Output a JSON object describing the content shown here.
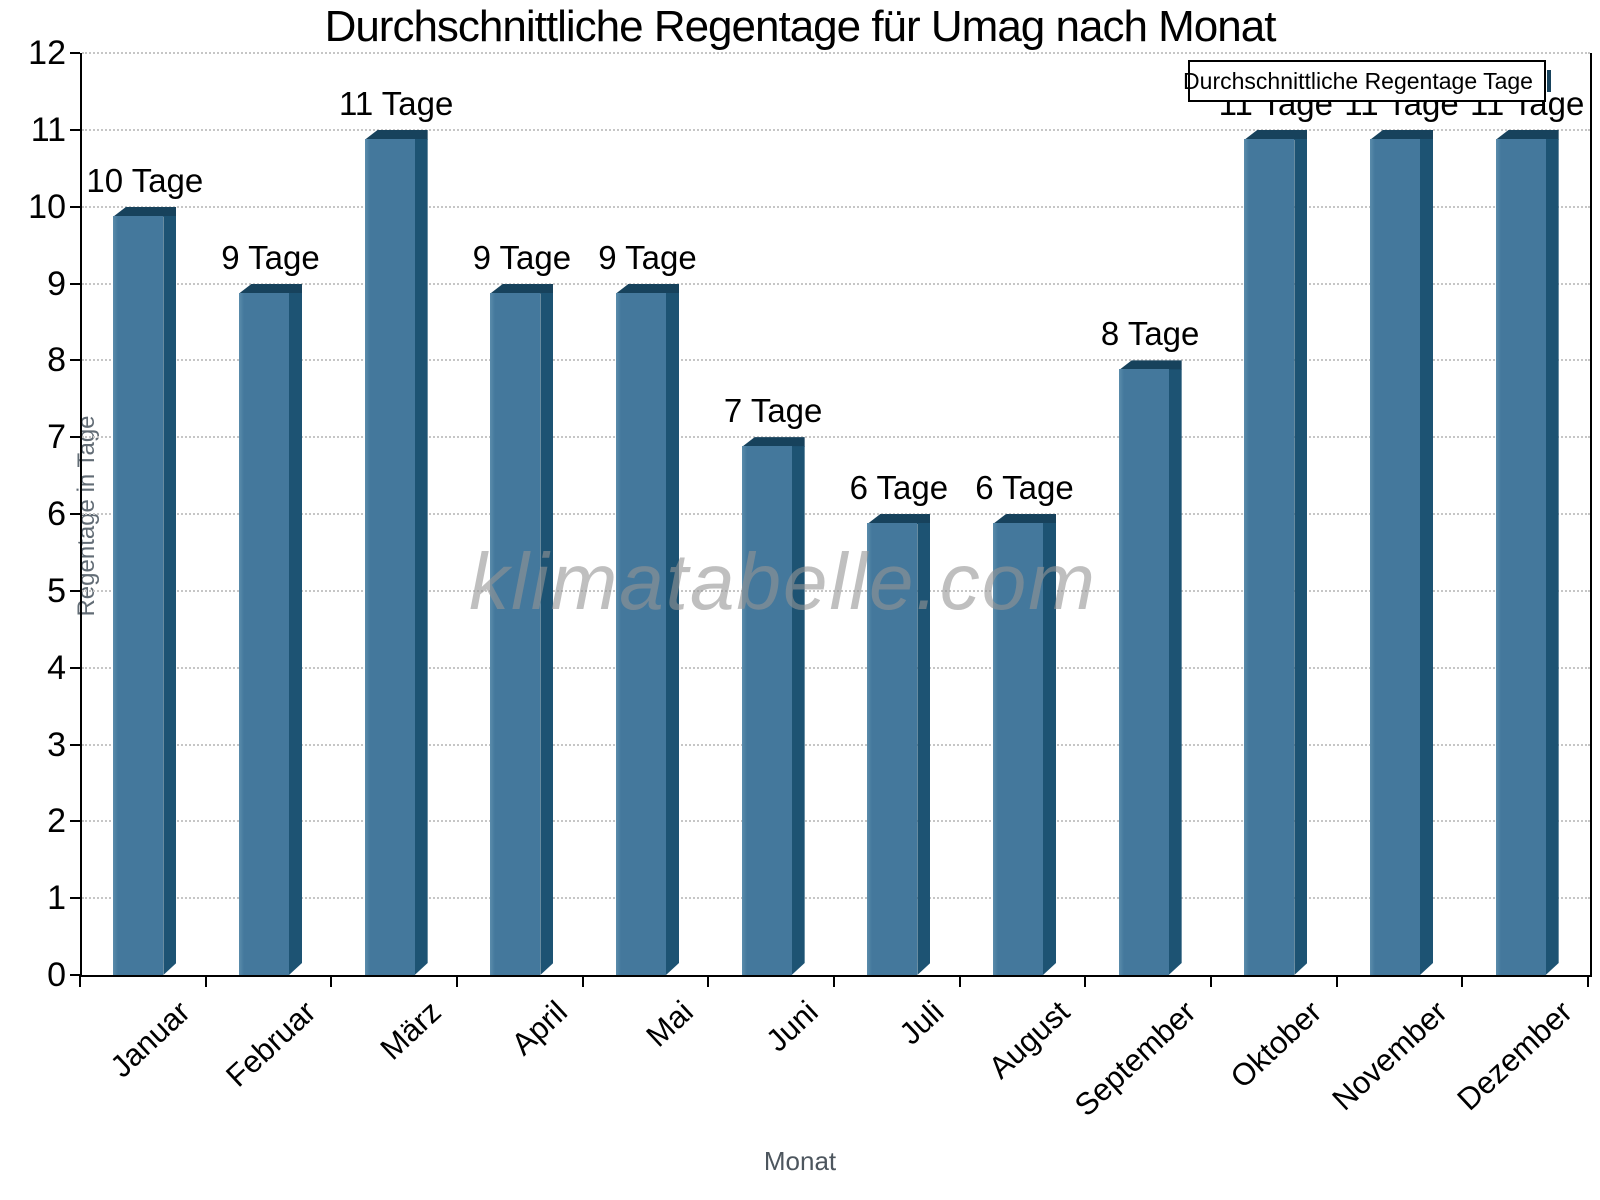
{
  "title": "Durchschnittliche Regentage für Umag nach Monat",
  "legend": {
    "label": "Durchschnittliche Regentage Tage"
  },
  "watermark": "klimatabelle.com",
  "chart_data": {
    "type": "bar",
    "title": "Durchschnittliche Regentage für Umag nach Monat",
    "categories": [
      "Januar",
      "Februar",
      "März",
      "April",
      "Mai",
      "Juni",
      "Juli",
      "August",
      "September",
      "Oktober",
      "November",
      "Dezember"
    ],
    "series": [
      {
        "name": "Durchschnittliche Regentage Tage",
        "values": [
          10,
          9,
          11,
          9,
          9,
          7,
          6,
          6,
          8,
          11,
          11,
          11
        ]
      }
    ],
    "bar_labels": [
      "10 Tage",
      "9 Tage",
      "11 Tage",
      "9 Tage",
      "9 Tage",
      "7 Tage",
      "6 Tage",
      "6 Tage",
      "8 Tage",
      "11 Tage",
      "11 Tage",
      "11 Tage"
    ],
    "xlabel": "Monat",
    "ylabel": "Regentage in Tage",
    "ylim": [
      0,
      12
    ],
    "ytick_step": 1,
    "yticks": [
      "0",
      "1",
      "2",
      "3",
      "4",
      "5",
      "6",
      "7",
      "8",
      "9",
      "10",
      "11",
      "12"
    ],
    "grid": "horizontal dotted",
    "legend_position": "top-right inside plot",
    "colors": {
      "bar_face": "#44789c",
      "bar_face_highlight": "#5a8cab",
      "bar_top": "#17425c",
      "bar_side": "#1d5373",
      "grid": "#c6c6c6",
      "axis": "#000000",
      "axis_title": "#5a646c"
    }
  }
}
